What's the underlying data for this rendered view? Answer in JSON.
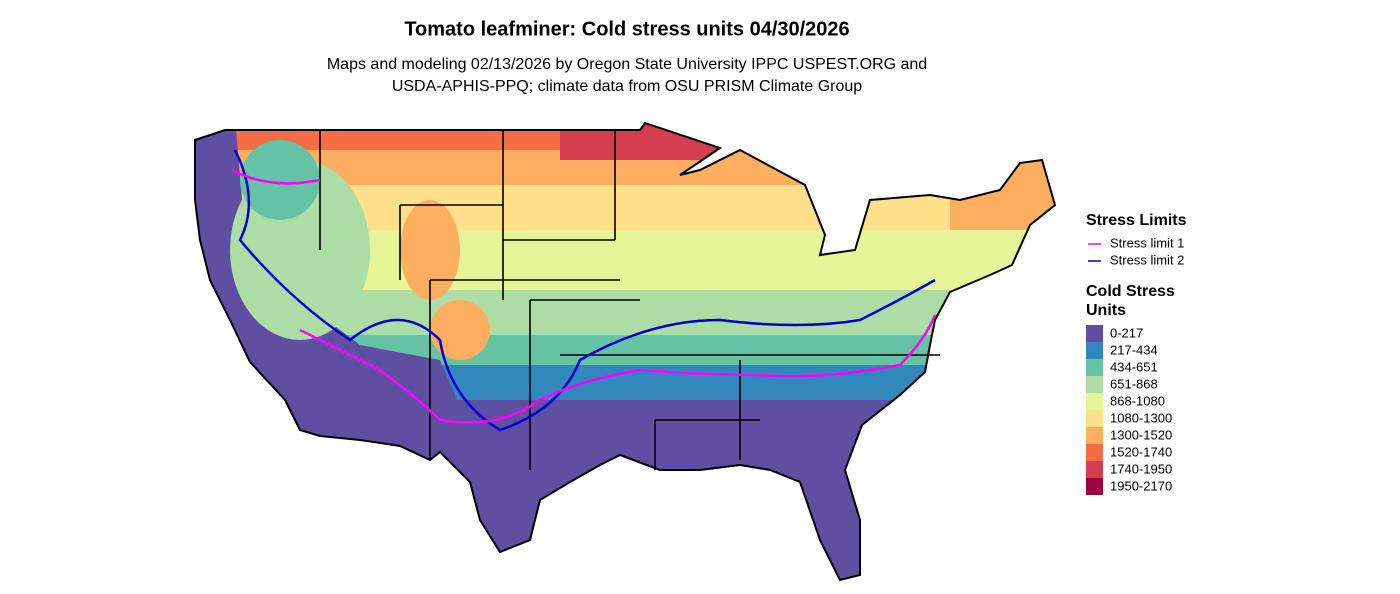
{
  "title": "Tomato leafminer: Cold stress units 04/30/2026",
  "subtitle": [
    "Maps and modeling 02/13/2026 by Oregon State University IPPC USPEST.ORG and",
    "USDA-APHIS-PPQ; climate data from OSU PRISM Climate Group"
  ],
  "legend": {
    "lines_title": "Stress Limits",
    "lines": [
      {
        "label": "Stress limit 1",
        "color": "#ff00ff"
      },
      {
        "label": "Stress limit 2",
        "color": "#0000cc"
      }
    ],
    "fill_title": [
      "Cold Stress",
      "Units"
    ],
    "classes": [
      {
        "label": "0-217",
        "color": "#5e4fa2"
      },
      {
        "label": "217-434",
        "color": "#3288bd"
      },
      {
        "label": "434-651",
        "color": "#66c2a5"
      },
      {
        "label": "651-868",
        "color": "#abdda4"
      },
      {
        "label": "868-1080",
        "color": "#e6f598"
      },
      {
        "label": "1080-1300",
        "color": "#fee08b"
      },
      {
        "label": "1300-1520",
        "color": "#fdae61"
      },
      {
        "label": "1520-1740",
        "color": "#f46d43"
      },
      {
        "label": "1740-1950",
        "color": "#d53e4f"
      },
      {
        "label": "1950-2170",
        "color": "#9e0142"
      }
    ]
  }
}
